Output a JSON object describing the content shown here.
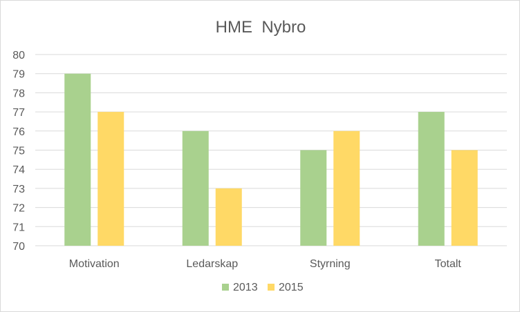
{
  "chart_data": {
    "type": "bar",
    "title": "HME  Nybro",
    "xlabel": "",
    "ylabel": "",
    "ylim": [
      70,
      80
    ],
    "yticks": [
      "70",
      "71",
      "72",
      "73",
      "74",
      "75",
      "76",
      "77",
      "78",
      "79",
      "80"
    ],
    "categories": [
      "Motivation",
      "Ledarskap",
      "Styrning",
      "Totalt"
    ],
    "series": [
      {
        "name": "2013",
        "color": "#a9d18e",
        "values": [
          79,
          76,
          75,
          77
        ]
      },
      {
        "name": "2015",
        "color": "#ffd966",
        "values": [
          77,
          73,
          76,
          75
        ]
      }
    ],
    "grid": true,
    "legend": "bottom",
    "gridline_color": "#d9d9d9"
  }
}
